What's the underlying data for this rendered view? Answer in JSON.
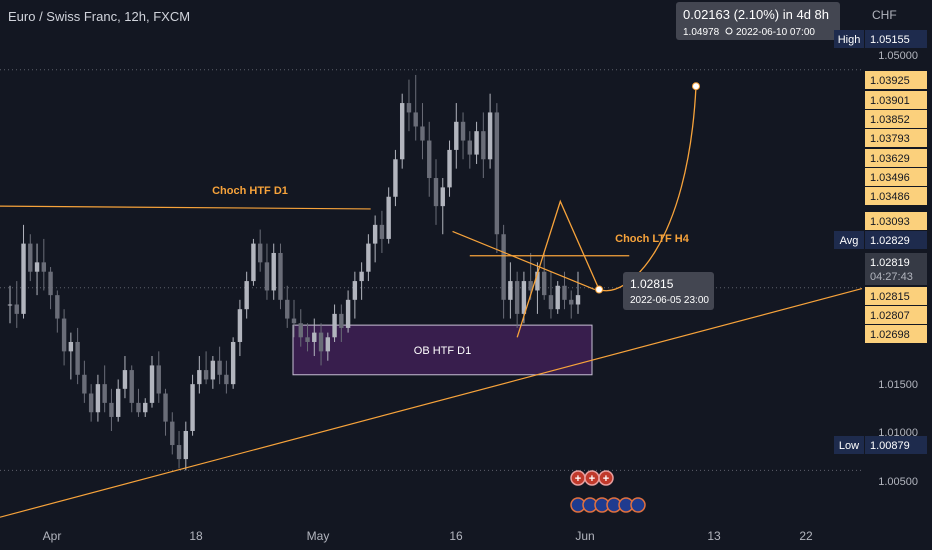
{
  "header": {
    "title": "Euro / Swiss Franc, 12h, FXCM",
    "currency": "CHF"
  },
  "colors": {
    "background": "#131722",
    "bull": "#b2b5be",
    "bear": "#6a6d78",
    "drawing": "#f7a33b",
    "ob_fill": "#3d1f52",
    "label_bg": "#fbd07c",
    "tag_dark": "#1e2b4d",
    "tooltip_bg": "#434651"
  },
  "chart_data": {
    "type": "candlestick",
    "title": "Euro / Swiss Franc, 12h, FXCM",
    "ylim": [
      1.0035,
      1.059
    ],
    "x_ticks": [
      "Apr",
      "18",
      "May",
      "16",
      "Jun",
      "13",
      "22"
    ],
    "y_ticks": [
      "1.05000",
      "1.01500",
      "1.01000",
      "1.00500"
    ],
    "price_labels": [
      {
        "tag": "High",
        "value": "1.05155",
        "style": "dark"
      },
      {
        "tag": "",
        "value": "1.03925",
        "style": "gold"
      },
      {
        "tag": "",
        "value": "1.03901",
        "style": "gold"
      },
      {
        "tag": "",
        "value": "1.03852",
        "style": "gold"
      },
      {
        "tag": "",
        "value": "1.03793",
        "style": "gold"
      },
      {
        "tag": "",
        "value": "1.03629",
        "style": "gold"
      },
      {
        "tag": "",
        "value": "1.03496",
        "style": "gold"
      },
      {
        "tag": "",
        "value": "1.03486",
        "style": "gold"
      },
      {
        "tag": "",
        "value": "1.03093",
        "style": "gold"
      },
      {
        "tag": "Avg",
        "value": "1.02829",
        "style": "dark"
      },
      {
        "tag": "",
        "value": "1.02819",
        "sub": "04:27:43",
        "style": "grey"
      },
      {
        "tag": "",
        "value": "1.02815",
        "style": "gold"
      },
      {
        "tag": "",
        "value": "1.02807",
        "style": "gold"
      },
      {
        "tag": "",
        "value": "1.02698",
        "style": "gold"
      },
      {
        "tag": "Low",
        "value": "1.00879",
        "style": "dark"
      }
    ],
    "candles": [
      [
        1.0265,
        1.0285,
        1.0245,
        1.0265
      ],
      [
        1.0265,
        1.029,
        1.024,
        1.0255
      ],
      [
        1.0255,
        1.035,
        1.025,
        1.033
      ],
      [
        1.033,
        1.034,
        1.029,
        1.03
      ],
      [
        1.03,
        1.033,
        1.0275,
        1.031
      ],
      [
        1.031,
        1.0335,
        1.028,
        1.03
      ],
      [
        1.03,
        1.0305,
        1.026,
        1.0275
      ],
      [
        1.0275,
        1.028,
        1.0235,
        1.025
      ],
      [
        1.025,
        1.026,
        1.02,
        1.0215
      ],
      [
        1.0215,
        1.0235,
        1.0185,
        1.0225
      ],
      [
        1.0225,
        1.024,
        1.018,
        1.019
      ],
      [
        1.019,
        1.0205,
        1.016,
        1.017
      ],
      [
        1.017,
        1.018,
        1.014,
        1.015
      ],
      [
        1.015,
        1.019,
        1.014,
        1.018
      ],
      [
        1.018,
        1.02,
        1.015,
        1.016
      ],
      [
        1.016,
        1.0175,
        1.013,
        1.0145
      ],
      [
        1.0145,
        1.0185,
        1.014,
        1.0175
      ],
      [
        1.0175,
        1.021,
        1.0165,
        1.0195
      ],
      [
        1.0195,
        1.02,
        1.015,
        1.016
      ],
      [
        1.016,
        1.0175,
        1.0145,
        1.015
      ],
      [
        1.015,
        1.0165,
        1.0145,
        1.016
      ],
      [
        1.016,
        1.021,
        1.0155,
        1.02
      ],
      [
        1.02,
        1.0215,
        1.016,
        1.017
      ],
      [
        1.017,
        1.0175,
        1.0125,
        1.014
      ],
      [
        1.014,
        1.015,
        1.0105,
        1.0115
      ],
      [
        1.0115,
        1.013,
        1.009,
        1.01
      ],
      [
        1.01,
        1.014,
        1.0088,
        1.013
      ],
      [
        1.013,
        1.019,
        1.0125,
        1.018
      ],
      [
        1.018,
        1.021,
        1.017,
        1.0195
      ],
      [
        1.0195,
        1.0215,
        1.018,
        1.0185
      ],
      [
        1.0185,
        1.021,
        1.0175,
        1.0205
      ],
      [
        1.0205,
        1.022,
        1.018,
        1.019
      ],
      [
        1.019,
        1.0205,
        1.017,
        1.018
      ],
      [
        1.018,
        1.023,
        1.0175,
        1.0225
      ],
      [
        1.0225,
        1.027,
        1.021,
        1.026
      ],
      [
        1.026,
        1.03,
        1.025,
        1.029
      ],
      [
        1.029,
        1.0335,
        1.0285,
        1.033
      ],
      [
        1.033,
        1.0345,
        1.03,
        1.031
      ],
      [
        1.031,
        1.033,
        1.027,
        1.028
      ],
      [
        1.028,
        1.033,
        1.027,
        1.032
      ],
      [
        1.032,
        1.033,
        1.026,
        1.027
      ],
      [
        1.027,
        1.0285,
        1.024,
        1.025
      ],
      [
        1.025,
        1.027,
        1.023,
        1.0245
      ],
      [
        1.0245,
        1.026,
        1.022,
        1.023
      ],
      [
        1.023,
        1.0245,
        1.0215,
        1.0225
      ],
      [
        1.0225,
        1.025,
        1.021,
        1.0235
      ],
      [
        1.0235,
        1.0245,
        1.02,
        1.0215
      ],
      [
        1.0215,
        1.0235,
        1.0205,
        1.023
      ],
      [
        1.023,
        1.0265,
        1.0225,
        1.0255
      ],
      [
        1.0255,
        1.0265,
        1.0225,
        1.024
      ],
      [
        1.024,
        1.028,
        1.0235,
        1.027
      ],
      [
        1.027,
        1.03,
        1.025,
        1.029
      ],
      [
        1.029,
        1.031,
        1.027,
        1.03
      ],
      [
        1.03,
        1.034,
        1.029,
        1.033
      ],
      [
        1.033,
        1.036,
        1.031,
        1.035
      ],
      [
        1.035,
        1.0365,
        1.032,
        1.0335
      ],
      [
        1.0335,
        1.039,
        1.033,
        1.038
      ],
      [
        1.038,
        1.043,
        1.037,
        1.042
      ],
      [
        1.042,
        1.049,
        1.041,
        1.048
      ],
      [
        1.048,
        1.0505,
        1.045,
        1.047
      ],
      [
        1.047,
        1.051,
        1.044,
        1.0455
      ],
      [
        1.0455,
        1.048,
        1.042,
        1.044
      ],
      [
        1.044,
        1.046,
        1.038,
        1.04
      ],
      [
        1.04,
        1.042,
        1.035,
        1.037
      ],
      [
        1.037,
        1.04,
        1.034,
        1.039
      ],
      [
        1.039,
        1.044,
        1.038,
        1.043
      ],
      [
        1.043,
        1.048,
        1.041,
        1.046
      ],
      [
        1.046,
        1.047,
        1.042,
        1.044
      ],
      [
        1.044,
        1.045,
        1.041,
        1.0425
      ],
      [
        1.0425,
        1.046,
        1.0415,
        1.045
      ],
      [
        1.045,
        1.047,
        1.04,
        1.042
      ],
      [
        1.042,
        1.049,
        1.041,
        1.047
      ],
      [
        1.047,
        1.048,
        1.032,
        1.034
      ],
      [
        1.034,
        1.035,
        1.025,
        1.027
      ],
      [
        1.027,
        1.031,
        1.025,
        1.029
      ],
      [
        1.029,
        1.03,
        1.024,
        1.0255
      ],
      [
        1.0255,
        1.03,
        1.0245,
        1.029
      ],
      [
        1.029,
        1.032,
        1.027,
        1.028
      ],
      [
        1.028,
        1.031,
        1.0255,
        1.03
      ],
      [
        1.03,
        1.032,
        1.027,
        1.0275
      ],
      [
        1.0275,
        1.03,
        1.025,
        1.026
      ],
      [
        1.026,
        1.029,
        1.0255,
        1.0285
      ],
      [
        1.0285,
        1.03,
        1.026,
        1.027
      ],
      [
        1.027,
        1.028,
        1.025,
        1.0265
      ],
      [
        1.0265,
        1.03,
        1.0255,
        1.0275
      ]
    ],
    "drawings": [
      {
        "type": "line",
        "label": "Choch HTF D1",
        "from": [
          0,
          1.037
        ],
        "to": [
          0.43,
          1.0367
        ]
      },
      {
        "type": "line",
        "label": "Choch LTF H4",
        "from": [
          0.545,
          1.0317
        ],
        "to": [
          0.73,
          1.0317
        ]
      },
      {
        "type": "rect",
        "label": "OB HTF D1",
        "y_top": 1.0243,
        "y_bottom": 1.019
      },
      {
        "type": "trendline",
        "from": [
          0,
          1.0038
        ],
        "to": [
          1,
          1.0282
        ]
      },
      {
        "type": "trendline",
        "from": [
          0.525,
          1.0343
        ],
        "to": [
          0.69,
          1.0281
        ]
      },
      {
        "type": "projection",
        "points": [
          [
            0.6,
            1.023
          ],
          [
            0.65,
            1.0375
          ],
          [
            0.695,
            1.0281
          ]
        ],
        "target": 1.0498
      }
    ],
    "annotations": {
      "target_line1": "0.02163 (2.10%) in 4d 8h",
      "target_line2": "1.04978",
      "target_date": "2022-06-10  07:00",
      "point_value": "1.02815",
      "point_date": "2022-06-05 23:00"
    },
    "horizontal_lines": [
      1.05155,
      1.02829,
      1.00879
    ]
  }
}
